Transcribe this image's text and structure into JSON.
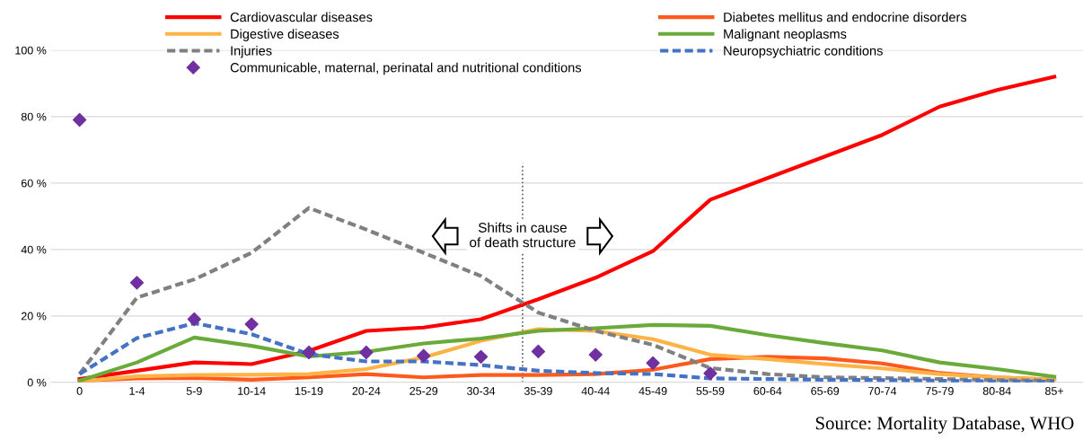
{
  "chart_data": {
    "type": "line",
    "categories": [
      "0",
      "1-4",
      "5-9",
      "10-14",
      "15-19",
      "20-24",
      "25-29",
      "30-34",
      "35-39",
      "40-44",
      "45-49",
      "55-59",
      "60-64",
      "65-69",
      "70-74",
      "75-79",
      "80-84",
      "85+"
    ],
    "series": [
      {
        "name": "Cardiovascular diseases",
        "color": "#ff0000",
        "line_style": "solid",
        "values": [
          1,
          3.5,
          6,
          5.5,
          9.5,
          15.5,
          16.5,
          19,
          25,
          31.5,
          39.5,
          55,
          61.5,
          68,
          74.5,
          83,
          88,
          92
        ]
      },
      {
        "name": "Diabetes mellitus and endocrine disorders",
        "color": "#ff5a1e",
        "line_style": "solid",
        "values": [
          0.5,
          1.2,
          1.3,
          0.8,
          1.5,
          2.5,
          1.5,
          2.2,
          2.2,
          2.5,
          3.8,
          7,
          7.7,
          7.2,
          5.7,
          2.8,
          1.5,
          0.8
        ]
      },
      {
        "name": "Digestive diseases",
        "color": "#ffb347",
        "line_style": "solid",
        "values": [
          0.3,
          1.8,
          2.2,
          2.3,
          2.5,
          4,
          7.5,
          12.5,
          16,
          15.5,
          13,
          8.3,
          7,
          5.5,
          4.2,
          2.5,
          1.5,
          0.8
        ]
      },
      {
        "name": "Malignant neoplasms",
        "color": "#6aaa3a",
        "line_style": "solid",
        "values": [
          0.5,
          6,
          13.5,
          11,
          7.8,
          9.2,
          11.7,
          13.2,
          15.5,
          16.3,
          17.3,
          17,
          14.2,
          11.8,
          9.6,
          6,
          4,
          1.7
        ]
      },
      {
        "name": "Injuries",
        "color": "#808080",
        "line_style": "dashed",
        "values": [
          2.5,
          25.5,
          31,
          39,
          52.5,
          46,
          39,
          32,
          21,
          15.5,
          11.3,
          4.3,
          2.5,
          1.5,
          1.3,
          1,
          0.7,
          0.5
        ]
      },
      {
        "name": "Neuropsychiatric conditions",
        "color": "#4472c4",
        "line_style": "dashed",
        "values": [
          2.5,
          13.3,
          17.8,
          14.5,
          8.5,
          6.3,
          6.3,
          5.2,
          3.5,
          2.8,
          2.5,
          1.2,
          1,
          0.8,
          0.7,
          0.5,
          0.3,
          0.2
        ]
      },
      {
        "name": "Communicable, maternal, perinatal and nutritional conditions",
        "type": "scatter",
        "marker": "diamond",
        "color": "#7030a0",
        "values": [
          79,
          30,
          19,
          17.5,
          9,
          9,
          8,
          7.7,
          9.3,
          8.3,
          5.8,
          2.7,
          null,
          null,
          null,
          null,
          null,
          null
        ]
      }
    ],
    "ylim": [
      0,
      100
    ],
    "yticks": [
      {
        "value": 0,
        "label": "0 %"
      },
      {
        "value": 20,
        "label": "20 %"
      },
      {
        "value": 40,
        "label": "40 %"
      },
      {
        "value": 60,
        "label": "60 %"
      },
      {
        "value": 80,
        "label": "80 %"
      },
      {
        "value": 100,
        "label": "100 %"
      }
    ],
    "grid": "y",
    "legend": "top",
    "annotations": [
      "Shifts in cause\nof death structure",
      "Source: Mortality Database, WHO"
    ]
  }
}
